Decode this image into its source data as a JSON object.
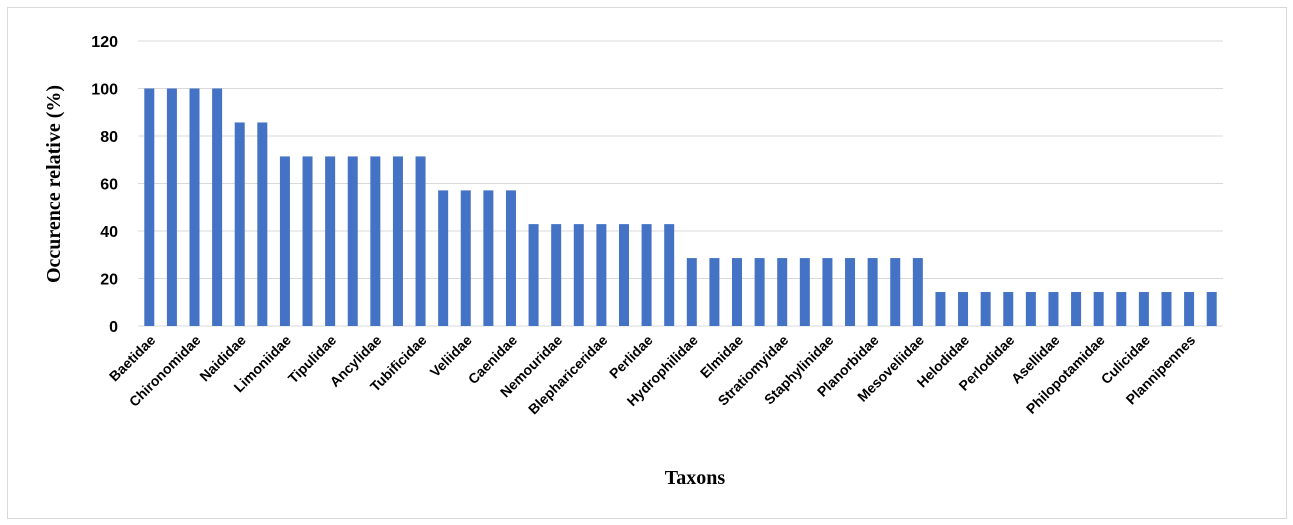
{
  "chart_data": {
    "type": "bar",
    "xlabel": "Taxons",
    "ylabel": "Occurence relative (%)",
    "ylim": [
      0,
      120
    ],
    "yticks": [
      0,
      20,
      40,
      60,
      80,
      100,
      120
    ],
    "grid": "horizontal",
    "bar_color": "#4472C4",
    "grid_color": "#d9d9d9",
    "categories_labeled": [
      "Baetidae",
      "Chironomidae",
      "Naididae",
      "Limoniidae",
      "Tipulidae",
      "Ancylidae",
      "Tubificidae",
      "Veliidae",
      "Caenidae",
      "Nemouridae",
      "Blephariceridae",
      "Perlidae",
      "Hydrophilidae",
      "Elmidae",
      "Stratiomyidae",
      "Staphylinidae",
      "Planorbidae",
      "Mesoveliidae",
      "Helodidae",
      "Perlodidae",
      "Asellidae",
      "Philopotamidae",
      "Culicidae",
      "Plannipennes"
    ],
    "values": [
      100,
      100,
      100,
      100,
      85.7,
      85.7,
      71.4,
      71.4,
      71.4,
      71.4,
      71.4,
      71.4,
      71.4,
      57.1,
      57.1,
      57.1,
      57.1,
      42.9,
      42.9,
      42.9,
      42.9,
      42.9,
      42.9,
      42.9,
      28.6,
      28.6,
      28.6,
      28.6,
      28.6,
      28.6,
      28.6,
      28.6,
      28.6,
      28.6,
      28.6,
      14.3,
      14.3,
      14.3,
      14.3,
      14.3,
      14.3,
      14.3,
      14.3,
      14.3,
      14.3,
      14.3,
      14.3,
      14.3
    ]
  }
}
